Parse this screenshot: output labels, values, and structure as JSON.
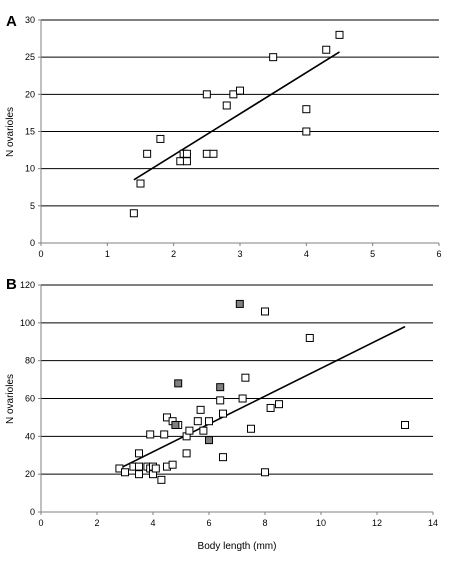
{
  "chart_data": [
    {
      "panel": "A",
      "type": "scatter",
      "title": "",
      "xlabel": "",
      "ylabel": "N ovarioles",
      "xlim": [
        0,
        6
      ],
      "ylim": [
        0,
        30
      ],
      "xticks": [
        0,
        1,
        2,
        3,
        4,
        5,
        6
      ],
      "yticks": [
        0,
        5,
        10,
        15,
        20,
        25,
        30
      ],
      "grid": "horizontal",
      "legend": "none",
      "series": [
        {
          "marker": "open-square",
          "color": "#000000",
          "points": [
            [
              1.4,
              4
            ],
            [
              1.5,
              8
            ],
            [
              1.6,
              12
            ],
            [
              1.8,
              14
            ],
            [
              2.1,
              11
            ],
            [
              2.15,
              12
            ],
            [
              2.2,
              11
            ],
            [
              2.2,
              12
            ],
            [
              2.5,
              12
            ],
            [
              2.6,
              12
            ],
            [
              2.5,
              20
            ],
            [
              2.8,
              18.5
            ],
            [
              2.9,
              20
            ],
            [
              3.0,
              20.5
            ],
            [
              3.5,
              25
            ],
            [
              4.0,
              18
            ],
            [
              4.0,
              15
            ],
            [
              4.3,
              26
            ],
            [
              4.5,
              28
            ]
          ]
        }
      ],
      "trendline": {
        "x": [
          1.4,
          4.5
        ],
        "y": [
          8.5,
          25.7
        ],
        "color": "#000000"
      }
    },
    {
      "panel": "B",
      "type": "scatter",
      "title": "",
      "xlabel": "Body length (mm)",
      "ylabel": "N ovarioles",
      "xlim": [
        0,
        14
      ],
      "ylim": [
        0,
        120
      ],
      "xticks": [
        0,
        2,
        4,
        6,
        8,
        10,
        12,
        14
      ],
      "yticks": [
        0,
        20,
        40,
        60,
        80,
        100,
        120
      ],
      "grid": "horizontal",
      "legend": "none",
      "series": [
        {
          "marker": "open-square",
          "color": "#000000",
          "points": [
            [
              2.8,
              23
            ],
            [
              3.0,
              21
            ],
            [
              3.3,
              24
            ],
            [
              3.5,
              31
            ],
            [
              3.5,
              24
            ],
            [
              3.5,
              20
            ],
            [
              3.8,
              24
            ],
            [
              3.9,
              41
            ],
            [
              3.9,
              23
            ],
            [
              4.0,
              20
            ],
            [
              4.0,
              24
            ],
            [
              4.1,
              23
            ],
            [
              4.3,
              17
            ],
            [
              4.4,
              41
            ],
            [
              4.5,
              24
            ],
            [
              4.5,
              50
            ],
            [
              4.7,
              25
            ],
            [
              4.7,
              48
            ],
            [
              4.9,
              46
            ],
            [
              5.2,
              31
            ],
            [
              5.2,
              40
            ],
            [
              5.3,
              43
            ],
            [
              5.6,
              48
            ],
            [
              5.7,
              54
            ],
            [
              5.8,
              43
            ],
            [
              6.0,
              48
            ],
            [
              6.4,
              59
            ],
            [
              6.5,
              52
            ],
            [
              6.5,
              29
            ],
            [
              7.2,
              60
            ],
            [
              7.3,
              71
            ],
            [
              7.5,
              44
            ],
            [
              8.0,
              106
            ],
            [
              8.0,
              21
            ],
            [
              8.2,
              55
            ],
            [
              8.5,
              57
            ],
            [
              9.6,
              92
            ],
            [
              13.0,
              46
            ]
          ]
        },
        {
          "marker": "filled-square",
          "color": "#808080",
          "points": [
            [
              4.8,
              46
            ],
            [
              4.9,
              68
            ],
            [
              6.0,
              38
            ],
            [
              6.4,
              66
            ],
            [
              7.1,
              110
            ]
          ]
        }
      ],
      "trendline": {
        "x": [
          2.8,
          13.0
        ],
        "y": [
          23,
          98
        ],
        "color": "#000000"
      }
    }
  ],
  "colors": {
    "gridline": "#000000",
    "axis": "#808080",
    "marker_stroke": "#000000"
  }
}
